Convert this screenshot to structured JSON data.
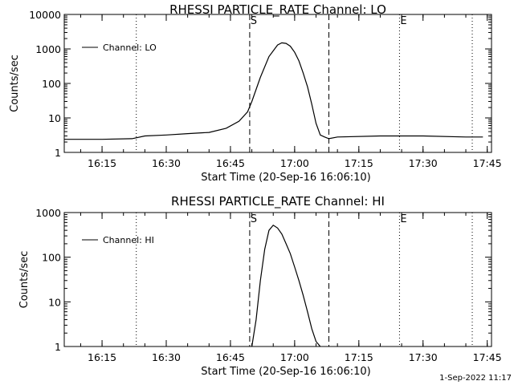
{
  "footer_timestamp": "1-Sep-2022 11:17",
  "chart_data": [
    {
      "type": "line",
      "title": "RHESSI PARTICLE_RATE Channel: LO",
      "xlabel": "Start Time (20-Sep-16 16:06:10)",
      "ylabel": "Counts/sec",
      "yscale": "log",
      "xlim": [
        "16:06:10",
        "17:46:00"
      ],
      "ylim": [
        1,
        10000
      ],
      "x_ticks": [
        "16:15",
        "16:30",
        "16:45",
        "17:00",
        "17:15",
        "17:30",
        "17:45"
      ],
      "y_ticks": [
        "1",
        "10",
        "100",
        "1000",
        "10000"
      ],
      "legend": {
        "position": "top-left",
        "entries": [
          "Channel: LO"
        ]
      },
      "markers": [
        {
          "label": "",
          "time": "16:23:00",
          "style": "dotted"
        },
        {
          "label": "S",
          "time": "16:49:30",
          "style": "dashed"
        },
        {
          "label": "",
          "time": "17:08:00",
          "style": "dashed"
        },
        {
          "label": "E",
          "time": "17:24:30",
          "style": "dotted"
        },
        {
          "label": "",
          "time": "17:41:30",
          "style": "dotted"
        }
      ],
      "series": [
        {
          "name": "Channel: LO",
          "x": [
            "16:06:10",
            "16:15:00",
            "16:22:00",
            "16:25:00",
            "16:30:00",
            "16:35:00",
            "16:40:00",
            "16:44:00",
            "16:47:00",
            "16:49:00",
            "16:50:00",
            "16:52:00",
            "16:54:00",
            "16:56:00",
            "16:57:00",
            "16:58:00",
            "16:59:00",
            "17:00:00",
            "17:01:00",
            "17:02:00",
            "17:03:00",
            "17:04:00",
            "17:05:00",
            "17:06:00",
            "17:07:00",
            "17:08:00",
            "17:10:00",
            "17:20:00",
            "17:30:00",
            "17:40:00",
            "17:44:00"
          ],
          "y": [
            2.4,
            2.4,
            2.5,
            3.0,
            3.2,
            3.5,
            3.8,
            5,
            8,
            15,
            30,
            150,
            600,
            1300,
            1500,
            1450,
            1200,
            800,
            450,
            200,
            80,
            25,
            7,
            3.2,
            2.8,
            2.5,
            2.8,
            3.0,
            3.0,
            2.8,
            2.8
          ],
          "note": ""
        }
      ]
    },
    {
      "type": "line",
      "title": "RHESSI PARTICLE_RATE Channel: HI",
      "xlabel": "Start Time (20-Sep-16 16:06:10)",
      "ylabel": "Counts/sec",
      "yscale": "log",
      "xlim": [
        "16:06:10",
        "17:46:00"
      ],
      "ylim": [
        1,
        1000
      ],
      "x_ticks": [
        "16:15",
        "16:30",
        "16:45",
        "17:00",
        "17:15",
        "17:30",
        "17:45"
      ],
      "y_ticks": [
        "1",
        "10",
        "100",
        "1000"
      ],
      "legend": {
        "position": "top-left",
        "entries": [
          "Channel: HI"
        ]
      },
      "markers": [
        {
          "label": "",
          "time": "16:23:00",
          "style": "dotted"
        },
        {
          "label": "S",
          "time": "16:49:30",
          "style": "dashed"
        },
        {
          "label": "",
          "time": "17:08:00",
          "style": "dashed"
        },
        {
          "label": "E",
          "time": "17:24:30",
          "style": "dotted"
        },
        {
          "label": "",
          "time": "17:41:30",
          "style": "dotted"
        }
      ],
      "series": [
        {
          "name": "Channel: HI",
          "x": [
            "16:50:00",
            "16:51:00",
            "16:52:00",
            "16:53:00",
            "16:54:00",
            "16:55:00",
            "16:56:00",
            "16:57:00",
            "16:58:00",
            "16:59:00",
            "17:00:00",
            "17:01:00",
            "17:02:00",
            "17:03:00",
            "17:04:00",
            "17:05:00",
            "17:06:00"
          ],
          "y": [
            1,
            4,
            30,
            150,
            400,
            520,
            450,
            330,
            200,
            120,
            60,
            30,
            14,
            6,
            2.5,
            1.3,
            1
          ]
        }
      ]
    }
  ]
}
